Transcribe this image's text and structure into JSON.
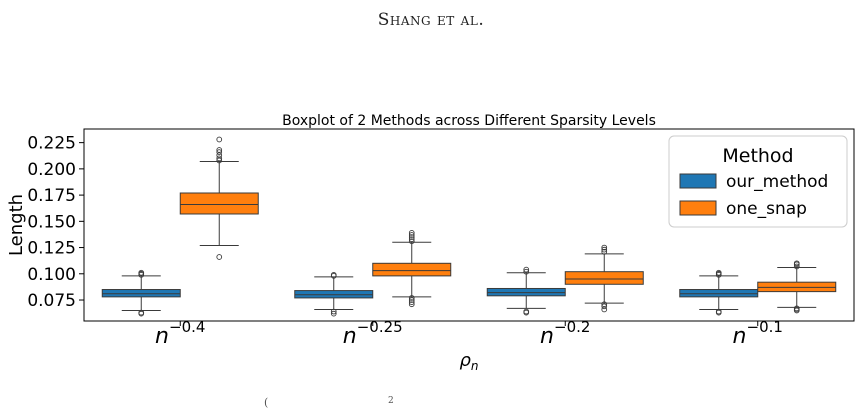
{
  "running_head": "Shang et al.",
  "bottom_fragments": [
    "(",
    "2"
  ],
  "chart_data": {
    "type": "boxplot",
    "title": "Boxplot of 2 Methods across Different Sparsity Levels",
    "xlabel": "ρ",
    "xlabel_sub": "n",
    "ylabel": "Length",
    "ylim": [
      0.055,
      0.238
    ],
    "yticks": [
      "0.075",
      "0.100",
      "0.125",
      "0.150",
      "0.175",
      "0.200",
      "0.225"
    ],
    "grid": false,
    "legend": {
      "title": "Method",
      "position": "top-right"
    },
    "categories": [
      {
        "base": "n",
        "exp": "−0.4"
      },
      {
        "base": "n",
        "exp": "−0.25"
      },
      {
        "base": "n",
        "exp": "−0.2"
      },
      {
        "base": "n",
        "exp": "−0.1"
      }
    ],
    "series": [
      {
        "name": "our_method",
        "color": "#1f77b4",
        "boxes": [
          {
            "whislo": 0.065,
            "q1": 0.078,
            "med": 0.081,
            "q3": 0.085,
            "whishi": 0.098,
            "fliers": [
              0.062,
              0.063,
              0.099,
              0.1,
              0.101
            ]
          },
          {
            "whislo": 0.066,
            "q1": 0.077,
            "med": 0.08,
            "q3": 0.084,
            "whishi": 0.097,
            "fliers": [
              0.062,
              0.064,
              0.098,
              0.099
            ]
          },
          {
            "whislo": 0.067,
            "q1": 0.079,
            "med": 0.082,
            "q3": 0.086,
            "whishi": 0.101,
            "fliers": [
              0.063,
              0.064,
              0.102,
              0.104
            ]
          },
          {
            "whislo": 0.066,
            "q1": 0.078,
            "med": 0.081,
            "q3": 0.085,
            "whishi": 0.098,
            "fliers": [
              0.063,
              0.064,
              0.099,
              0.1,
              0.101
            ]
          }
        ]
      },
      {
        "name": "one_snap",
        "color": "#ff7f0e",
        "boxes": [
          {
            "whislo": 0.127,
            "q1": 0.157,
            "med": 0.166,
            "q3": 0.177,
            "whishi": 0.207,
            "fliers": [
              0.116,
              0.208,
              0.21,
              0.213,
              0.216,
              0.218,
              0.228
            ]
          },
          {
            "whislo": 0.078,
            "q1": 0.098,
            "med": 0.103,
            "q3": 0.11,
            "whishi": 0.13,
            "fliers": [
              0.071,
              0.073,
              0.075,
              0.077,
              0.131,
              0.133,
              0.135,
              0.137,
              0.139
            ]
          },
          {
            "whislo": 0.072,
            "q1": 0.09,
            "med": 0.095,
            "q3": 0.102,
            "whishi": 0.119,
            "fliers": [
              0.066,
              0.069,
              0.071,
              0.121,
              0.123,
              0.125
            ]
          },
          {
            "whislo": 0.068,
            "q1": 0.083,
            "med": 0.087,
            "q3": 0.092,
            "whishi": 0.106,
            "fliers": [
              0.065,
              0.066,
              0.067,
              0.107,
              0.109,
              0.11
            ]
          }
        ]
      }
    ]
  }
}
